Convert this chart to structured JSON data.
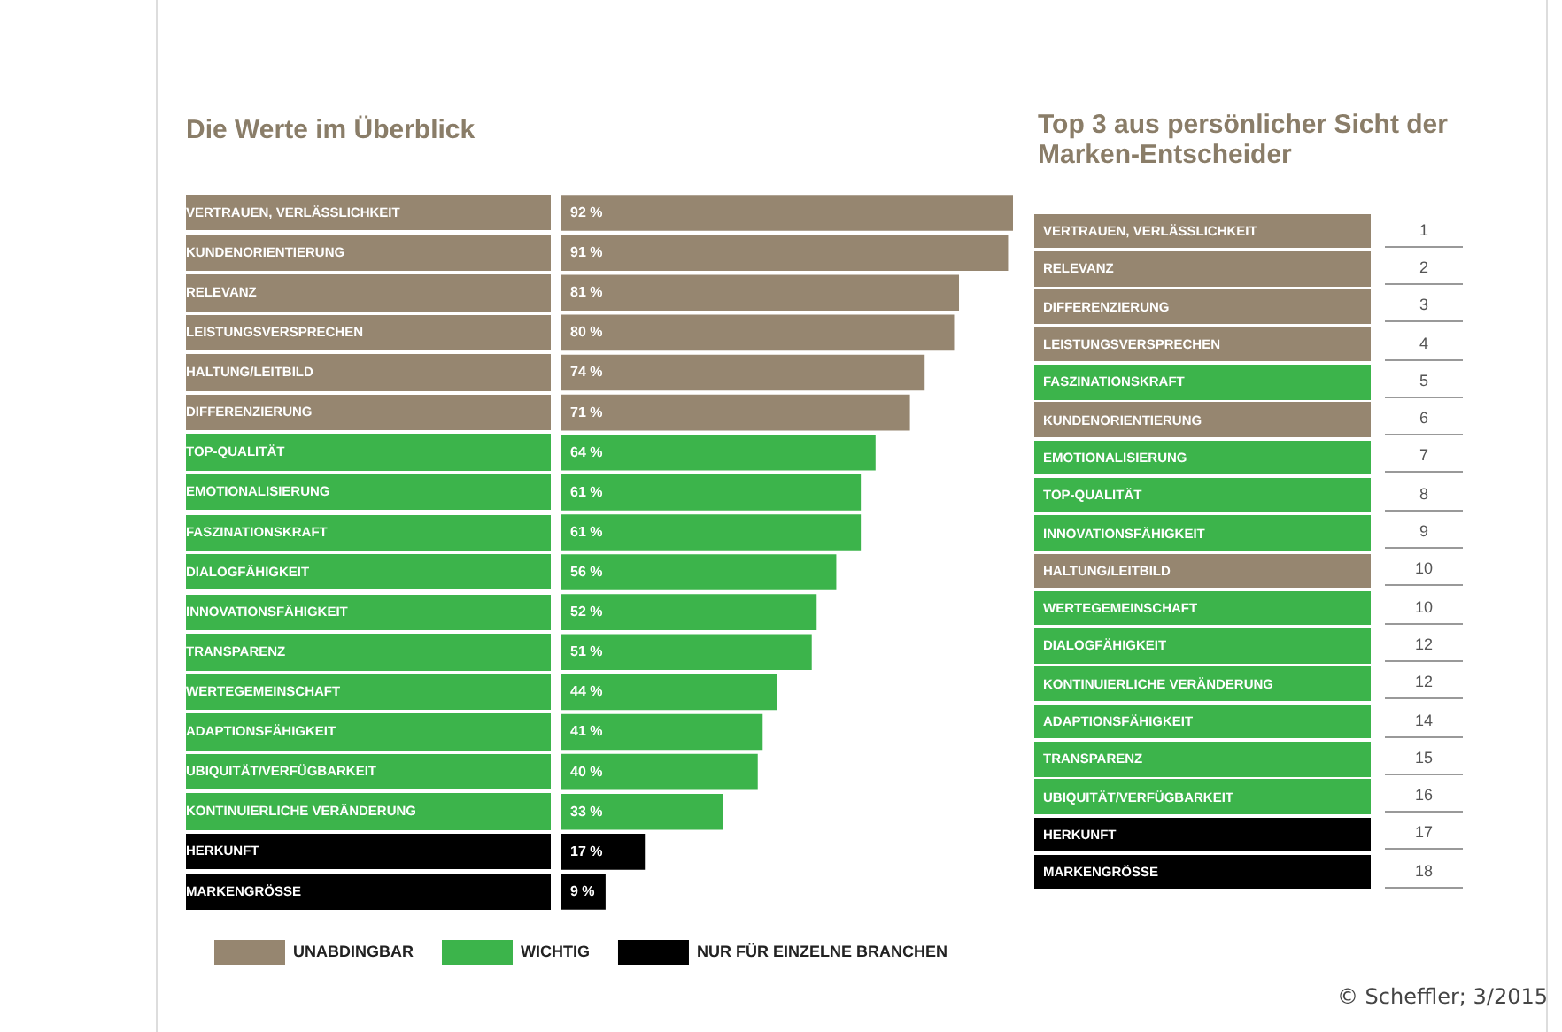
{
  "chart_data": [
    {
      "type": "bar",
      "orientation": "horizontal",
      "stacked": true,
      "title": "Die Werte im Überblick",
      "categories": [
        "VERTRAUEN, VERLÄSSLICHKEIT",
        "KUNDENORIENTIERUNG",
        "RELEVANZ",
        "LEISTUNGSVERSPRECHEN",
        "HALTUNG/LEITBILD",
        "DIFFERENZIERUNG",
        "TOP-QUALITÄT",
        "EMOTIONALISIERUNG",
        "FASZINATIONSKRAFT",
        "DIALOGFÄHIGKEIT",
        "INNOVATIONSFÄHIGKEIT",
        "TRANSPARENZ",
        "WERTEGEMEINSCHAFT",
        "ADAPTIONSFÄHIGKEIT",
        "UBIQUITÄT/VERFÜGBARKEIT",
        "KONTINUIERLICHE VERÄNDERUNG",
        "HERKUNFT",
        "MARKENGRÖSSE"
      ],
      "series": [
        {
          "name": "UNABDINGBAR",
          "color": "#968670",
          "values": [
            92,
            91,
            81,
            80,
            74,
            71,
            null,
            null,
            null,
            null,
            null,
            null,
            null,
            null,
            null,
            null,
            null,
            null
          ],
          "value_labels": [
            "92 %",
            "91 %",
            "81 %",
            "80 %",
            "74 %",
            "71 %",
            null,
            null,
            null,
            null,
            null,
            null,
            null,
            null,
            null,
            null,
            null,
            null
          ]
        },
        {
          "name": "WICHTIG",
          "color": "#3cb44b",
          "values": [
            null,
            null,
            null,
            null,
            null,
            null,
            64,
            61,
            61,
            56,
            52,
            51,
            44,
            41,
            40,
            33,
            null,
            null
          ],
          "value_labels": [
            null,
            null,
            null,
            null,
            null,
            null,
            "64 %",
            "61 %",
            "61 %",
            "56 %",
            "52 %",
            "51 %",
            "44 %",
            "41 %",
            "40 %",
            "33 %",
            null,
            null
          ]
        },
        {
          "name": "NUR FÜR EINZELNE BRANCHEN",
          "color": "#000000",
          "values": [
            null,
            null,
            null,
            null,
            null,
            null,
            null,
            null,
            null,
            null,
            null,
            null,
            null,
            null,
            null,
            null,
            17,
            9
          ],
          "value_labels": [
            null,
            null,
            null,
            null,
            null,
            null,
            null,
            null,
            null,
            null,
            null,
            null,
            null,
            null,
            null,
            null,
            "17 %",
            "9 %"
          ]
        }
      ],
      "xlim": [
        0,
        92
      ],
      "tick_labels": "y",
      "legend": "bottom",
      "annotations": [
        "© Scheffler; 3/2015"
      ]
    },
    {
      "type": "other",
      "title": "Top 3 aus persönlicher Sicht der Marken-Entscheider",
      "data_labels": true,
      "categories": [
        "VERTRAUEN, VERLÄSSLICHKEIT",
        "RELEVANZ",
        "DIFFERENZIERUNG",
        "LEISTUNGSVERSPRECHEN",
        "FASZINATIONSKRAFT",
        "KUNDENORIENTIERUNG",
        "EMOTIONALISIERUNG",
        "TOP-QUALITÄT",
        "INNOVATIONSFÄHIGKEIT",
        "HALTUNG/LEITBILD",
        "WERTEGEMEINSCHAFT",
        "DIALOGFÄHIGKEIT",
        "KONTINUIERLICHE VERÄNDERUNG",
        "ADAPTIONSFÄHIGKEIT",
        "TRANSPARENZ",
        "UBIQUITÄT/VERFÜGBARKEIT",
        "HERKUNFT",
        "MARKENGRÖSSE"
      ],
      "values": [
        1,
        2,
        3,
        4,
        5,
        6,
        7,
        8,
        9,
        10,
        10,
        12,
        12,
        14,
        15,
        16,
        17,
        18
      ],
      "colors": [
        "#968670",
        "#968670",
        "#968670",
        "#968670",
        "#3cb44b",
        "#968670",
        "#3cb44b",
        "#3cb44b",
        "#3cb44b",
        "#968670",
        "#3cb44b",
        "#3cb44b",
        "#3cb44b",
        "#3cb44b",
        "#3cb44b",
        "#3cb44b",
        "#000000",
        "#000000"
      ]
    }
  ]
}
